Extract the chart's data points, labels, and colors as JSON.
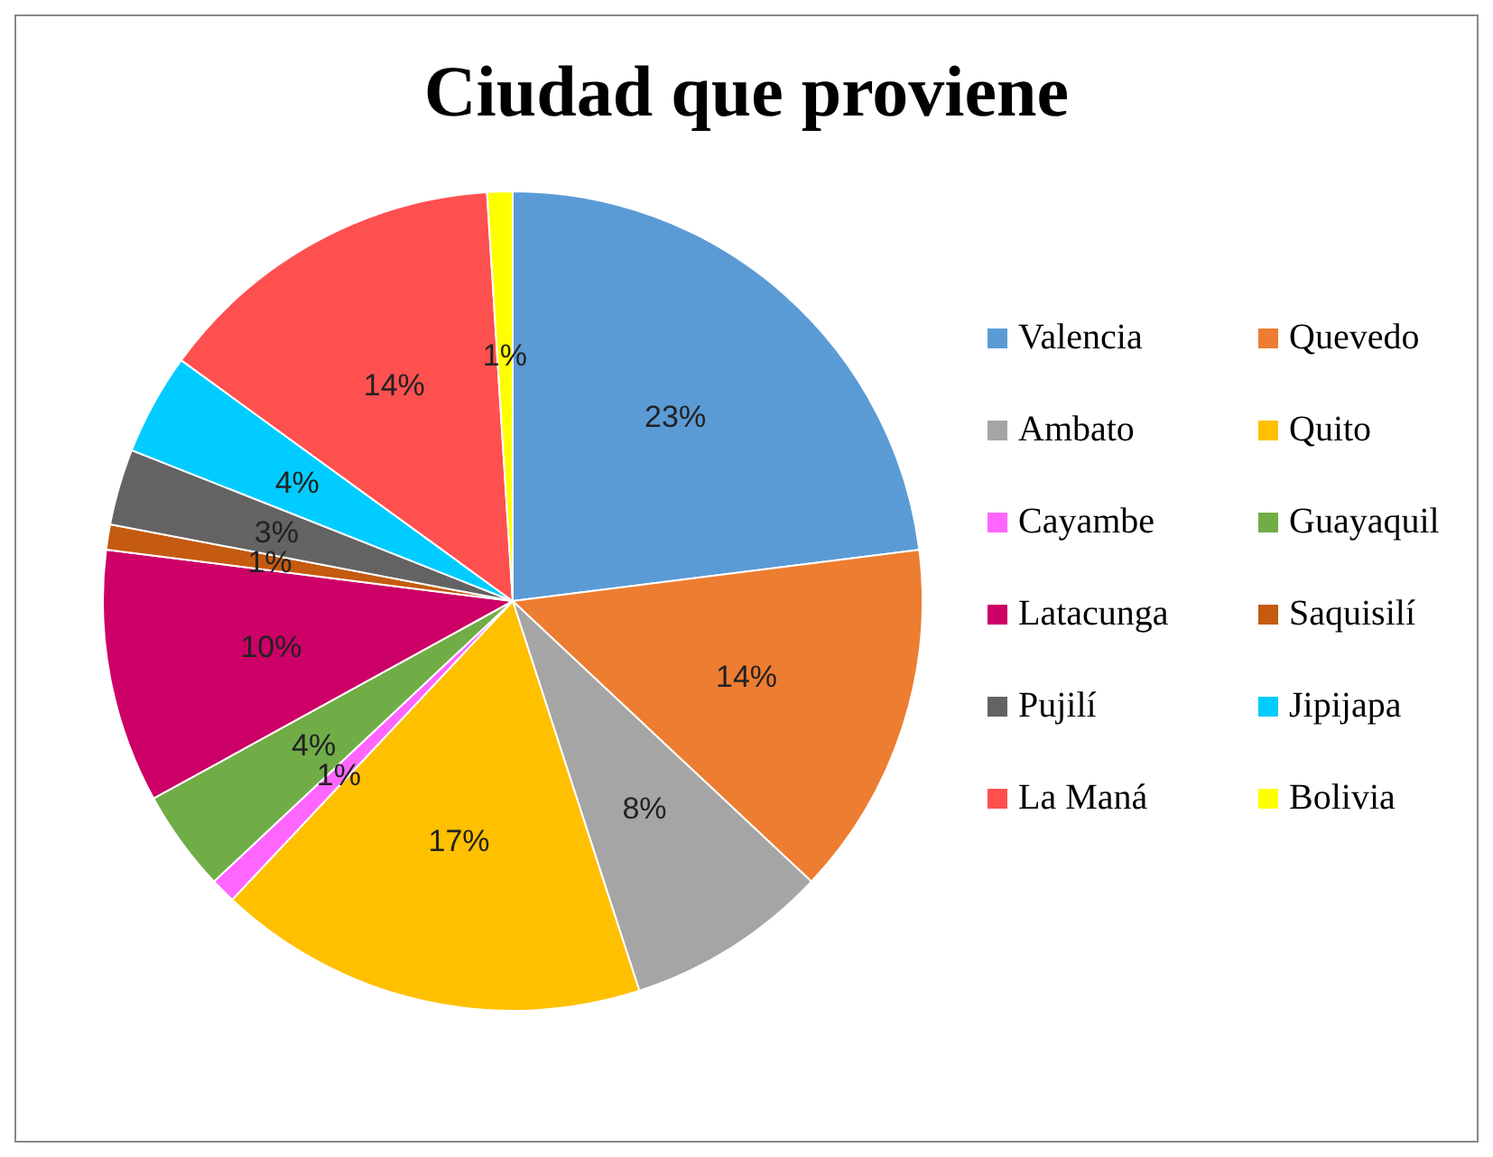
{
  "chart_data": {
    "type": "pie",
    "title": "Ciudad que proviene",
    "categories": [
      "Valencia",
      "Quevedo",
      "Ambato",
      "Quito",
      "Cayambe",
      "Guayaquil",
      "Latacunga",
      "Saquisilí",
      "Pujilí",
      "Jipijapa",
      "La Maná",
      "Bolivia"
    ],
    "values": [
      23,
      14,
      8,
      17,
      1,
      4,
      10,
      1,
      3,
      4,
      14,
      1
    ],
    "value_labels": [
      "23%",
      "14%",
      "8%",
      "17%",
      "1%",
      "4%",
      "10%",
      "1%",
      "3%",
      "4%",
      "14%",
      "1%"
    ],
    "colors": [
      "#5b9bd5",
      "#ed7d31",
      "#a5a5a5",
      "#ffc000",
      "#ff66ff",
      "#70ad47",
      "#cc0066",
      "#c55a11",
      "#636363",
      "#00ccff",
      "#ff5050",
      "#ffff00"
    ],
    "legend": "right"
  }
}
